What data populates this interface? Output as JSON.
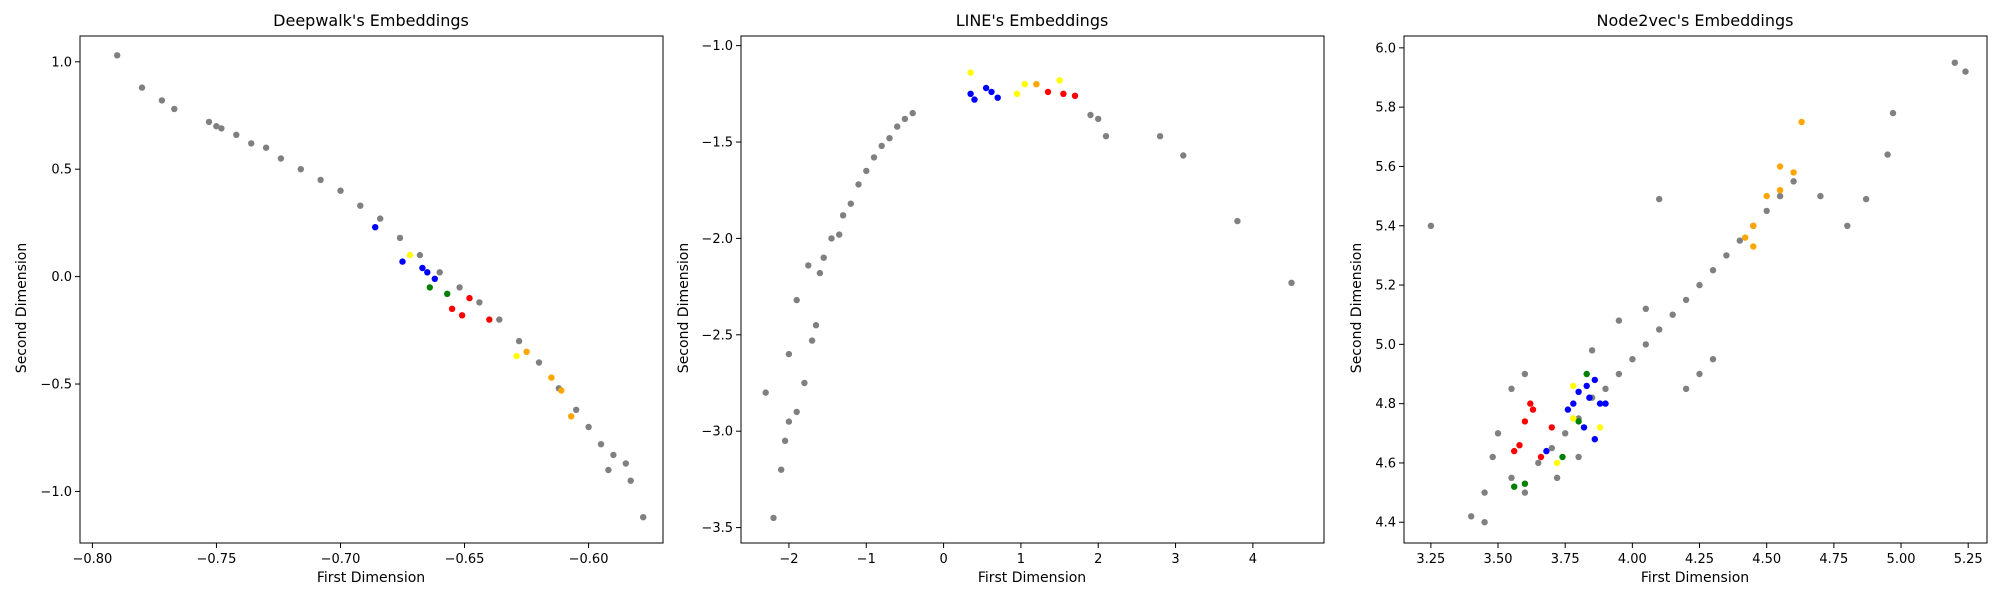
{
  "chart_data": [
    {
      "type": "scatter",
      "title": "Deepwalk's Embeddings",
      "xlabel": "First Dimension",
      "ylabel": "Second Dimension",
      "xlim": [
        -0.805,
        -0.57
      ],
      "ylim": [
        -1.24,
        1.12
      ],
      "xticks": [
        -0.8,
        -0.75,
        -0.7,
        -0.65,
        -0.6
      ],
      "xtick_labels": [
        "−0.80",
        "−0.75",
        "−0.70",
        "−0.65",
        "−0.60"
      ],
      "yticks": [
        -1.0,
        -0.5,
        0.0,
        0.5,
        1.0
      ],
      "ytick_labels": [
        "−1.0",
        "−0.5",
        "0.0",
        "0.5",
        "1.0"
      ],
      "grid": false,
      "series": [
        {
          "color": "#808080",
          "points": [
            [
              -0.79,
              1.03
            ],
            [
              -0.78,
              0.88
            ],
            [
              -0.772,
              0.82
            ],
            [
              -0.767,
              0.78
            ],
            [
              -0.753,
              0.72
            ],
            [
              -0.75,
              0.7
            ],
            [
              -0.748,
              0.69
            ],
            [
              -0.742,
              0.66
            ],
            [
              -0.736,
              0.62
            ],
            [
              -0.73,
              0.6
            ],
            [
              -0.724,
              0.55
            ],
            [
              -0.716,
              0.5
            ],
            [
              -0.708,
              0.45
            ],
            [
              -0.7,
              0.4
            ],
            [
              -0.692,
              0.33
            ],
            [
              -0.684,
              0.27
            ],
            [
              -0.676,
              0.18
            ],
            [
              -0.668,
              0.1
            ],
            [
              -0.66,
              0.02
            ],
            [
              -0.652,
              -0.05
            ],
            [
              -0.644,
              -0.12
            ],
            [
              -0.636,
              -0.2
            ],
            [
              -0.628,
              -0.3
            ],
            [
              -0.62,
              -0.4
            ],
            [
              -0.612,
              -0.52
            ],
            [
              -0.605,
              -0.62
            ],
            [
              -0.6,
              -0.7
            ],
            [
              -0.595,
              -0.78
            ],
            [
              -0.59,
              -0.83
            ],
            [
              -0.585,
              -0.87
            ],
            [
              -0.583,
              -0.95
            ],
            [
              -0.592,
              -0.9
            ],
            [
              -0.578,
              -1.12
            ]
          ]
        },
        {
          "color": "#0000ff",
          "points": [
            [
              -0.686,
              0.23
            ],
            [
              -0.675,
              0.07
            ],
            [
              -0.667,
              0.04
            ],
            [
              -0.665,
              0.02
            ],
            [
              -0.662,
              -0.01
            ]
          ]
        },
        {
          "color": "#ff0000",
          "points": [
            [
              -0.655,
              -0.15
            ],
            [
              -0.651,
              -0.18
            ],
            [
              -0.64,
              -0.2
            ],
            [
              -0.648,
              -0.1
            ]
          ]
        },
        {
          "color": "#ffa500",
          "points": [
            [
              -0.625,
              -0.35
            ],
            [
              -0.615,
              -0.47
            ],
            [
              -0.611,
              -0.53
            ],
            [
              -0.607,
              -0.65
            ]
          ]
        },
        {
          "color": "#ffff00",
          "points": [
            [
              -0.672,
              0.1
            ],
            [
              -0.629,
              -0.37
            ]
          ]
        },
        {
          "color": "#008000",
          "points": [
            [
              -0.664,
              -0.05
            ],
            [
              -0.657,
              -0.08
            ]
          ]
        }
      ]
    },
    {
      "type": "scatter",
      "title": "LINE's Embeddings",
      "xlabel": "First Dimension",
      "ylabel": "Second Dimension",
      "xlim": [
        -2.62,
        4.92
      ],
      "ylim": [
        -3.58,
        -0.95
      ],
      "xticks": [
        -2,
        -1,
        0,
        1,
        2,
        3,
        4
      ],
      "xtick_labels": [
        "−2",
        "−1",
        "0",
        "1",
        "2",
        "3",
        "4"
      ],
      "yticks": [
        -3.5,
        -3.0,
        -2.5,
        -2.0,
        -1.5,
        -1.0
      ],
      "ytick_labels": [
        "−3.5",
        "−3.0",
        "−2.5",
        "−2.0",
        "−1.5",
        "−1.0"
      ],
      "grid": false,
      "series": [
        {
          "color": "#808080",
          "points": [
            [
              -2.3,
              -2.8
            ],
            [
              -2.2,
              -3.45
            ],
            [
              -2.1,
              -3.2
            ],
            [
              -2.05,
              -3.05
            ],
            [
              -2.0,
              -2.95
            ],
            [
              -1.9,
              -2.9
            ],
            [
              -2.0,
              -2.6
            ],
            [
              -1.9,
              -2.32
            ],
            [
              -1.8,
              -2.75
            ],
            [
              -1.7,
              -2.53
            ],
            [
              -1.65,
              -2.45
            ],
            [
              -1.75,
              -2.14
            ],
            [
              -1.6,
              -2.18
            ],
            [
              -1.55,
              -2.1
            ],
            [
              -1.45,
              -2.0
            ],
            [
              -1.35,
              -1.98
            ],
            [
              -1.3,
              -1.88
            ],
            [
              -1.2,
              -1.82
            ],
            [
              -1.1,
              -1.72
            ],
            [
              -1.0,
              -1.65
            ],
            [
              -0.9,
              -1.58
            ],
            [
              -0.8,
              -1.52
            ],
            [
              -0.7,
              -1.48
            ],
            [
              -0.6,
              -1.42
            ],
            [
              -0.5,
              -1.38
            ],
            [
              -0.4,
              -1.35
            ],
            [
              1.9,
              -1.36
            ],
            [
              2.0,
              -1.38
            ],
            [
              2.1,
              -1.47
            ],
            [
              2.8,
              -1.47
            ],
            [
              3.1,
              -1.57
            ],
            [
              3.8,
              -1.91
            ],
            [
              4.5,
              -2.23
            ]
          ]
        },
        {
          "color": "#0000ff",
          "points": [
            [
              0.35,
              -1.25
            ],
            [
              0.55,
              -1.22
            ],
            [
              0.62,
              -1.24
            ],
            [
              0.4,
              -1.28
            ],
            [
              0.7,
              -1.27
            ]
          ]
        },
        {
          "color": "#ff0000",
          "points": [
            [
              1.35,
              -1.24
            ],
            [
              1.55,
              -1.25
            ],
            [
              1.7,
              -1.26
            ]
          ]
        },
        {
          "color": "#ffa500",
          "points": [
            [
              1.2,
              -1.2
            ]
          ]
        },
        {
          "color": "#ffff00",
          "points": [
            [
              0.35,
              -1.14
            ],
            [
              0.95,
              -1.25
            ],
            [
              1.05,
              -1.2
            ],
            [
              1.5,
              -1.18
            ]
          ]
        }
      ]
    },
    {
      "type": "scatter",
      "title": "Node2vec's Embeddings",
      "xlabel": "First Dimension",
      "ylabel": "Second Dimension",
      "xlim": [
        3.15,
        5.32
      ],
      "ylim": [
        4.33,
        6.04
      ],
      "xticks": [
        3.25,
        3.5,
        3.75,
        4.0,
        4.25,
        4.5,
        4.75,
        5.0,
        5.25
      ],
      "xtick_labels": [
        "3.25",
        "3.50",
        "3.75",
        "4.00",
        "4.25",
        "4.50",
        "4.75",
        "5.00",
        "5.25"
      ],
      "yticks": [
        4.4,
        4.6,
        4.8,
        5.0,
        5.2,
        5.4,
        5.6,
        5.8,
        6.0
      ],
      "ytick_labels": [
        "4.4",
        "4.6",
        "4.8",
        "5.0",
        "5.2",
        "5.4",
        "5.6",
        "5.8",
        "6.0"
      ],
      "grid": false,
      "series": [
        {
          "color": "#808080",
          "points": [
            [
              3.25,
              5.4
            ],
            [
              3.4,
              4.42
            ],
            [
              3.45,
              4.4
            ],
            [
              3.45,
              4.5
            ],
            [
              5.2,
              5.95
            ],
            [
              5.24,
              5.92
            ],
            [
              4.97,
              5.78
            ],
            [
              4.95,
              5.64
            ],
            [
              4.87,
              5.49
            ],
            [
              4.8,
              5.4
            ],
            [
              4.1,
              5.49
            ],
            [
              4.7,
              5.5
            ],
            [
              3.6,
              4.9
            ],
            [
              3.55,
              4.85
            ],
            [
              3.5,
              4.7
            ],
            [
              3.48,
              4.62
            ],
            [
              3.55,
              4.55
            ],
            [
              3.6,
              4.5
            ],
            [
              3.65,
              4.6
            ],
            [
              3.7,
              4.65
            ],
            [
              3.75,
              4.7
            ],
            [
              3.8,
              4.75
            ],
            [
              3.85,
              4.82
            ],
            [
              3.9,
              4.85
            ],
            [
              3.95,
              4.9
            ],
            [
              4.0,
              4.95
            ],
            [
              4.05,
              5.0
            ],
            [
              4.1,
              5.05
            ],
            [
              4.15,
              5.1
            ],
            [
              4.2,
              5.15
            ],
            [
              4.25,
              5.2
            ],
            [
              4.3,
              5.25
            ],
            [
              4.35,
              5.3
            ],
            [
              4.4,
              5.35
            ],
            [
              4.45,
              5.4
            ],
            [
              4.5,
              5.45
            ],
            [
              4.55,
              5.5
            ],
            [
              4.6,
              5.55
            ],
            [
              4.25,
              4.9
            ],
            [
              4.3,
              4.95
            ],
            [
              4.2,
              4.85
            ],
            [
              4.05,
              5.12
            ],
            [
              3.95,
              5.08
            ],
            [
              3.85,
              4.98
            ],
            [
              3.8,
              4.62
            ],
            [
              3.72,
              4.55
            ]
          ]
        },
        {
          "color": "#ff0000",
          "points": [
            [
              3.62,
              4.8
            ],
            [
              3.63,
              4.78
            ],
            [
              3.58,
              4.66
            ],
            [
              3.6,
              4.74
            ],
            [
              3.7,
              4.72
            ],
            [
              3.66,
              4.62
            ],
            [
              3.56,
              4.64
            ]
          ]
        },
        {
          "color": "#0000ff",
          "points": [
            [
              3.8,
              4.84
            ],
            [
              3.83,
              4.86
            ],
            [
              3.78,
              4.8
            ],
            [
              3.84,
              4.82
            ],
            [
              3.86,
              4.88
            ],
            [
              3.88,
              4.8
            ],
            [
              3.9,
              4.8
            ],
            [
              3.82,
              4.72
            ],
            [
              3.86,
              4.68
            ],
            [
              3.68,
              4.64
            ],
            [
              3.76,
              4.78
            ]
          ]
        },
        {
          "color": "#008000",
          "points": [
            [
              3.83,
              4.9
            ],
            [
              3.8,
              4.74
            ],
            [
              3.74,
              4.62
            ],
            [
              3.56,
              4.52
            ],
            [
              3.6,
              4.53
            ]
          ]
        },
        {
          "color": "#ffff00",
          "points": [
            [
              3.78,
              4.75
            ],
            [
              3.88,
              4.72
            ],
            [
              3.72,
              4.6
            ],
            [
              3.78,
              4.86
            ]
          ]
        },
        {
          "color": "#ffa500",
          "points": [
            [
              4.63,
              5.75
            ],
            [
              4.55,
              5.6
            ],
            [
              4.6,
              5.58
            ],
            [
              4.5,
              5.5
            ],
            [
              4.45,
              5.4
            ],
            [
              4.55,
              5.52
            ],
            [
              4.45,
              5.33
            ],
            [
              4.42,
              5.36
            ]
          ]
        }
      ]
    }
  ]
}
